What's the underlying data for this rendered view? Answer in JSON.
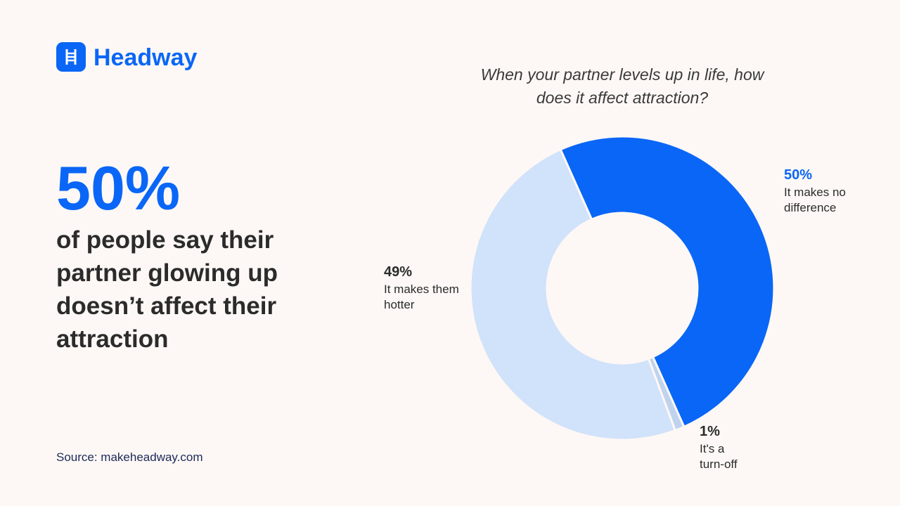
{
  "brand": "Headway",
  "highlight": {
    "figure": "50%",
    "text": "of people say their partner glowing up doesn’t affect their attraction"
  },
  "source": "Source: makeheadway.com",
  "chart_data": {
    "type": "donut",
    "title": "When your partner levels up in life, how does it affect attraction?",
    "categories": [
      "It makes no difference",
      "It's a turn-off",
      "It makes them hotter"
    ],
    "values": [
      50,
      1,
      49
    ],
    "value_labels": [
      "50%",
      "1%",
      "49%"
    ],
    "colors": [
      "#0a66f6",
      "#bfd3ee",
      "#d1e2fb"
    ]
  }
}
